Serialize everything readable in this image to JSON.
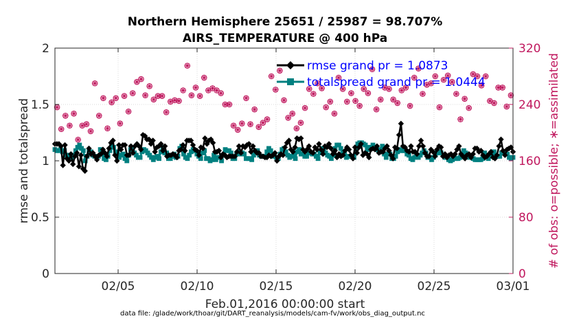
{
  "chart_data": {
    "type": "line",
    "title_line1": "Northern Hemisphere 25651 / 25987 = 98.707%",
    "title_line2": "AIRS_TEMPERATURE @ 400 hPa",
    "ylabel": "rmse and totalspread",
    "ylabel_right": "# of obs: o=possible; ∗=assimilated",
    "xlabel": "Feb.01,2016 00:00:00 start",
    "footnote": "data file: /glade/work/thoar/git/DART_reanalysis/models/cam-fv/work/obs_diag_output.nc",
    "x_tick_labels": [
      "02/05",
      "02/10",
      "02/15",
      "02/20",
      "02/25",
      "03/01"
    ],
    "x_tick_days": [
      5,
      10,
      15,
      20,
      25,
      30
    ],
    "xlim_days": [
      1.0,
      30.0
    ],
    "y_tick_labels": [
      "0",
      "0.5",
      "1",
      "1.5",
      "2"
    ],
    "y_ticks": [
      0,
      0.5,
      1,
      1.5,
      2
    ],
    "ylim": [
      0,
      2
    ],
    "y_right_tick_labels": [
      "0",
      "80",
      "160",
      "240",
      "320"
    ],
    "y_right_ticks": [
      0,
      80,
      160,
      240,
      320
    ],
    "ylim_right": [
      0,
      320
    ],
    "grid": true,
    "legend_position": "top-right",
    "series": [
      {
        "name": "rmse",
        "label": "rmse grand pr = 1.0873",
        "color": "#000000",
        "marker": "diamond",
        "values": [
          1.15,
          1.15,
          1.15,
          1.13,
          0.96,
          1.14,
          1.02,
          1.0,
          1.06,
          0.97,
          1.04,
          1.07,
          0.95,
          1.05,
          0.93,
          0.91,
          1.04,
          1.11,
          1.06,
          1.07,
          1.04,
          1.01,
          1.05,
          1.06,
          1.1,
          1.07,
          1.04,
          1.11,
          1.16,
          1.18,
          1.05,
          1.0,
          1.14,
          1.1,
          1.14,
          1.14,
          1.05,
          1.05,
          1.13,
          1.07,
          1.13,
          1.15,
          1.13,
          1.1,
          1.23,
          1.22,
          1.19,
          1.19,
          1.15,
          1.18,
          1.08,
          1.12,
          1.13,
          1.15,
          1.09,
          1.13,
          1.04,
          1.05,
          1.05,
          1.06,
          1.05,
          1.03,
          1.09,
          1.1,
          1.14,
          1.09,
          1.18,
          1.18,
          1.18,
          1.14,
          1.1,
          1.09,
          1.05,
          1.12,
          1.11,
          1.2,
          1.15,
          1.18,
          1.19,
          1.16,
          1.08,
          1.08,
          1.09,
          1.03,
          1.06,
          1.05,
          1.03,
          1.04,
          1.04,
          1.04,
          1.04,
          1.08,
          1.13,
          1.07,
          1.13,
          1.12,
          1.14,
          1.15,
          1.08,
          1.13,
          1.09,
          1.07,
          1.07,
          1.04,
          1.04,
          1.03,
          1.03,
          1.05,
          1.04,
          1.05,
          1.07,
          1.0,
          1.04,
          1.06,
          1.05,
          1.12,
          1.16,
          1.18,
          1.1,
          1.08,
          1.12,
          1.2,
          1.19,
          1.2,
          1.1,
          1.08,
          1.1,
          1.13,
          1.08,
          1.07,
          1.12,
          1.1,
          1.15,
          1.1,
          1.06,
          1.13,
          1.12,
          1.15,
          1.11,
          1.06,
          1.09,
          1.03,
          1.06,
          1.04,
          1.05,
          1.09,
          1.12,
          1.1,
          1.05,
          1.02,
          1.12,
          1.07,
          1.12,
          1.15,
          1.05,
          1.07,
          1.06,
          1.03,
          1.1,
          1.11,
          1.1,
          1.13,
          1.07,
          1.08,
          1.08,
          1.11,
          1.13,
          1.09,
          1.05,
          1.02,
          1.12,
          1.11,
          1.23,
          1.33,
          1.13,
          1.12,
          1.09,
          1.08,
          1.13,
          1.08,
          1.08,
          1.06,
          1.13,
          1.18,
          1.13,
          1.07,
          1.04,
          1.04,
          1.1,
          1.08,
          1.04,
          1.1,
          1.13,
          1.12,
          1.04,
          1.06,
          1.03,
          1.05,
          1.06,
          1.04,
          1.06,
          1.1,
          1.13,
          1.06,
          1.04,
          1.02,
          1.05,
          1.06,
          1.03,
          1.06,
          1.11,
          1.11,
          1.08,
          1.09,
          1.05,
          1.03,
          1.04,
          1.06,
          1.08,
          1.03,
          1.02,
          1.05,
          1.13,
          1.19,
          1.09,
          1.05,
          1.1,
          1.11,
          1.12,
          1.08
        ]
      },
      {
        "name": "totalspread",
        "label": "totalspread grand pr = 1.0444",
        "color": "#008080",
        "marker": "square",
        "values": [
          1.1,
          1.09,
          1.09,
          1.1,
          1.08,
          1.09,
          1.05,
          1.03,
          1.05,
          1.02,
          1.05,
          1.09,
          1.12,
          1.14,
          1.11,
          1.09,
          1.0,
          1.04,
          1.08,
          1.08,
          1.05,
          1.04,
          1.04,
          1.04,
          1.1,
          1.06,
          1.02,
          1.01,
          1.04,
          1.09,
          1.14,
          1.12,
          1.08,
          1.07,
          1.03,
          1.05,
          1.06,
          1.02,
          1.0,
          1.05,
          1.1,
          1.1,
          1.07,
          1.05,
          1.03,
          1.03,
          1.08,
          1.1,
          1.09,
          1.07,
          1.05,
          1.03,
          1.01,
          1.03,
          1.04,
          1.02,
          1.08,
          1.12,
          1.07,
          1.07,
          1.02,
          1.02,
          1.04,
          1.06,
          1.03,
          1.04,
          1.11,
          1.13,
          1.06,
          1.03,
          1.02,
          1.05,
          1.08,
          1.1,
          1.09,
          1.06,
          1.04,
          1.02,
          1.07,
          1.09,
          1.02,
          1.02,
          1.0,
          1.01,
          1.05,
          1.01,
          1.03,
          1.03,
          1.0,
          1.05,
          1.1,
          1.09,
          1.09,
          1.07,
          1.02,
          1.02,
          1.06,
          1.08,
          1.06,
          1.07,
          1.06,
          1.02,
          1.02,
          1.02,
          1.01,
          1.05,
          1.09,
          1.09,
          1.05,
          1.04,
          1.04,
          1.04,
          1.08,
          1.11,
          1.09,
          1.04,
          1.05,
          1.03,
          1.02,
          1.06,
          1.1,
          1.11,
          1.08,
          1.05,
          1.03,
          1.04,
          1.05,
          1.02,
          1.08,
          1.1,
          1.06,
          1.06,
          1.04,
          1.04,
          1.07,
          1.07,
          1.06,
          1.06,
          1.04,
          1.02,
          1.07,
          1.11,
          1.1,
          1.07,
          1.05,
          1.04,
          1.02,
          1.05,
          1.11,
          1.14,
          1.14,
          1.11,
          1.08,
          1.06,
          1.03,
          1.04,
          1.04,
          1.04,
          1.03,
          1.08,
          1.15,
          1.16,
          1.16,
          1.15,
          1.14,
          1.1,
          1.12,
          1.12,
          1.14,
          1.12,
          1.1,
          1.09,
          1.1,
          1.13,
          1.06,
          1.03,
          1.06,
          1.06,
          1.02,
          1.02,
          1.04,
          1.08,
          1.1,
          1.09,
          1.09,
          1.09,
          1.06,
          1.05,
          1.02,
          1.01,
          1.03,
          1.05,
          1.03,
          1.05,
          1.07,
          1.09,
          1.07,
          1.03,
          1.03,
          1.01,
          1.03,
          1.05,
          1.07,
          1.08,
          1.07,
          1.05,
          1.03,
          1.03,
          1.01,
          1.0,
          1.01,
          1.03,
          1.02,
          1.02,
          1.03,
          1.06,
          1.09,
          1.07,
          1.05,
          1.03,
          1.04,
          1.02,
          1.01,
          1.01,
          1.01,
          1.01,
          1.02,
          1.07,
          1.05,
          1.02,
          1.04,
          1.07,
          1.08,
          1.04,
          1.04,
          1.04,
          1.07,
          1.07,
          1.06,
          1.06,
          1.03,
          1.02,
          1.03
        ]
      }
    ],
    "obs_series": [
      {
        "name": "possible",
        "marker": "o",
        "axis": "right",
        "color": "#c0185e",
        "values": [
          236,
          205,
          224,
          210,
          227,
          190,
          210,
          212,
          202,
          270,
          224,
          249,
          206,
          243,
          249,
          213,
          252,
          230,
          256,
          272,
          276,
          253,
          266,
          247,
          252,
          252,
          229,
          244,
          246,
          245,
          260,
          295,
          253,
          264,
          252,
          278,
          260,
          263,
          260,
          256,
          240,
          240,
          210,
          204,
          213,
          249,
          212,
          233,
          208,
          214,
          219,
          280,
          261,
          288,
          246,
          221,
          227,
          206,
          214,
          235,
          262,
          255,
          270,
          263,
          236,
          244,
          227,
          278,
          262,
          244,
          256,
          245,
          238,
          262,
          256,
          290,
          233,
          247,
          264,
          262,
          247,
          242,
          260,
          264,
          238,
          278,
          291,
          255,
          268,
          270,
          280,
          236,
          275,
          281,
          272,
          255,
          219,
          248,
          235,
          283,
          280,
          267,
          280,
          245,
          242,
          264,
          264,
          237,
          253
        ]
      },
      {
        "name": "assimilated",
        "marker": "*",
        "axis": "right",
        "color": "#c0185e",
        "values": [
          236,
          205,
          224,
          210,
          227,
          190,
          210,
          212,
          202,
          270,
          224,
          249,
          206,
          243,
          249,
          213,
          252,
          230,
          256,
          272,
          276,
          253,
          266,
          247,
          252,
          252,
          229,
          244,
          246,
          245,
          260,
          295,
          253,
          264,
          252,
          278,
          260,
          263,
          260,
          256,
          240,
          240,
          210,
          204,
          213,
          249,
          212,
          233,
          208,
          214,
          219,
          280,
          261,
          288,
          246,
          221,
          227,
          206,
          214,
          235,
          262,
          255,
          270,
          263,
          236,
          244,
          227,
          278,
          262,
          244,
          256,
          245,
          238,
          262,
          256,
          290,
          233,
          247,
          264,
          262,
          247,
          242,
          260,
          264,
          238,
          278,
          291,
          255,
          268,
          270,
          280,
          236,
          275,
          281,
          272,
          255,
          219,
          248,
          235,
          283,
          280,
          267,
          280,
          245,
          242,
          264,
          264,
          237,
          253
        ]
      }
    ],
    "accent_color_right": "#c0185e"
  }
}
